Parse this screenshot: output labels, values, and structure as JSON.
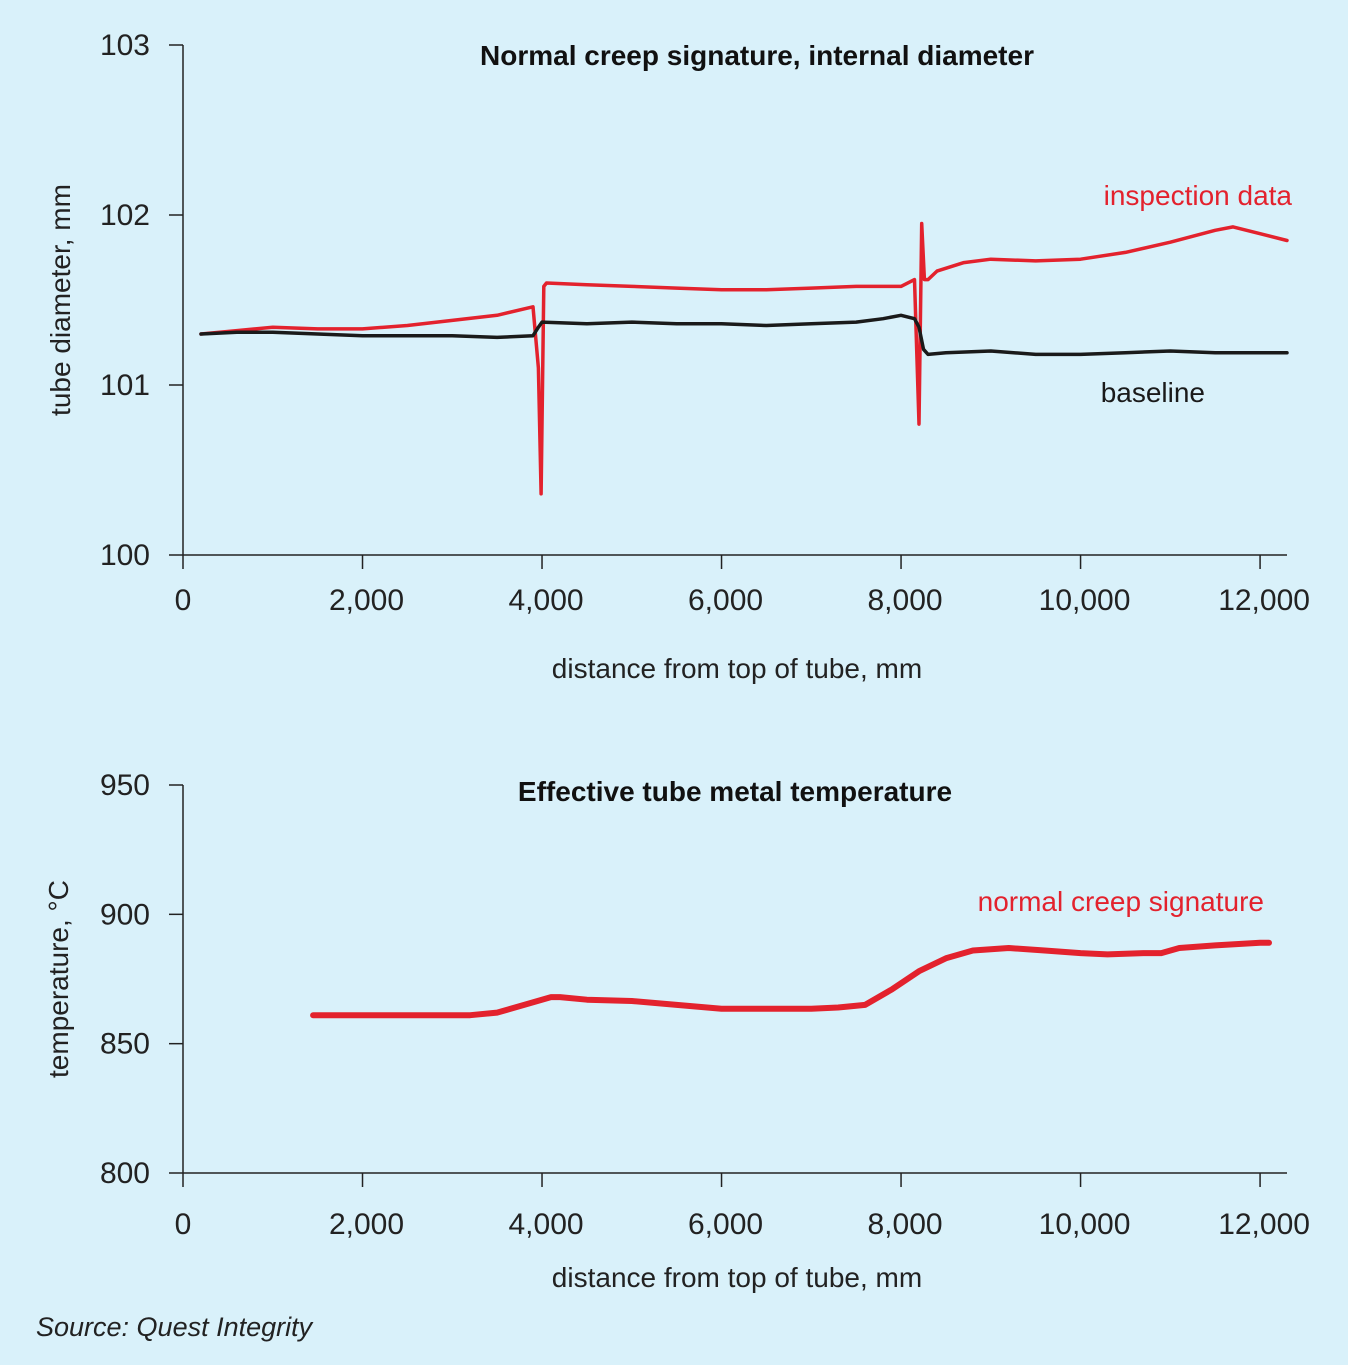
{
  "colors": {
    "background": "#d9f1fa",
    "inspection": "#e3222d",
    "baseline": "#1a1a1a",
    "axis": "#222222"
  },
  "source": "Source: Quest Integrity",
  "chart_data": [
    {
      "type": "line",
      "title": "Normal creep signature, internal diameter",
      "xlabel": "distance from top of tube, mm",
      "ylabel": "tube diameter, mm",
      "xlim": [
        0,
        12300
      ],
      "ylim": [
        100,
        103
      ],
      "xticks": [
        0,
        2000,
        4000,
        6000,
        8000,
        10000,
        12000
      ],
      "xtick_labels": [
        "0",
        "2,000",
        "4,000",
        "6,000",
        "8,000",
        "10,000",
        "12,000"
      ],
      "yticks": [
        100,
        101,
        102,
        103
      ],
      "ytick_labels": [
        "100",
        "101",
        "102",
        "103"
      ],
      "grid": false,
      "series": [
        {
          "name": "inspection data",
          "color": "#e3222d",
          "x": [
            200,
            600,
            1000,
            1500,
            2000,
            2500,
            3000,
            3500,
            3900,
            3960,
            3990,
            4020,
            4050,
            4500,
            5000,
            5500,
            6000,
            6500,
            7000,
            7500,
            8000,
            8150,
            8200,
            8230,
            8260,
            8300,
            8400,
            8700,
            9000,
            9500,
            10000,
            10500,
            11000,
            11500,
            11700,
            12000,
            12300
          ],
          "y": [
            101.3,
            101.32,
            101.34,
            101.33,
            101.33,
            101.35,
            101.38,
            101.41,
            101.46,
            101.1,
            100.36,
            101.58,
            101.6,
            101.59,
            101.58,
            101.57,
            101.56,
            101.56,
            101.57,
            101.58,
            101.58,
            101.62,
            100.77,
            101.95,
            101.62,
            101.62,
            101.67,
            101.72,
            101.74,
            101.73,
            101.74,
            101.78,
            101.84,
            101.91,
            101.93,
            101.89,
            101.85
          ]
        },
        {
          "name": "baseline",
          "color": "#1a1a1a",
          "x": [
            200,
            600,
            1000,
            1500,
            2000,
            2500,
            3000,
            3500,
            3900,
            3960,
            4000,
            4500,
            5000,
            5500,
            6000,
            6500,
            7000,
            7500,
            7800,
            8000,
            8150,
            8200,
            8250,
            8300,
            8500,
            9000,
            9500,
            10000,
            10500,
            11000,
            11500,
            12000,
            12300
          ],
          "y": [
            101.3,
            101.31,
            101.31,
            101.3,
            101.29,
            101.29,
            101.29,
            101.28,
            101.29,
            101.34,
            101.37,
            101.36,
            101.37,
            101.36,
            101.36,
            101.35,
            101.36,
            101.37,
            101.39,
            101.41,
            101.39,
            101.34,
            101.21,
            101.18,
            101.19,
            101.2,
            101.18,
            101.18,
            101.19,
            101.2,
            101.19,
            101.19,
            101.19
          ]
        }
      ]
    },
    {
      "type": "line",
      "title": "Effective tube metal temperature",
      "xlabel": "distance from top of tube, mm",
      "ylabel": "temperature, °C",
      "xlim": [
        0,
        12300
      ],
      "ylim": [
        800,
        950
      ],
      "xticks": [
        0,
        2000,
        4000,
        6000,
        8000,
        10000,
        12000
      ],
      "xtick_labels": [
        "0",
        "2,000",
        "4,000",
        "6,000",
        "8,000",
        "10,000",
        "12,000"
      ],
      "yticks": [
        800,
        850,
        900,
        950
      ],
      "ytick_labels": [
        "800",
        "850",
        "900",
        "950"
      ],
      "grid": false,
      "series": [
        {
          "name": "normal creep signature",
          "color": "#e3222d",
          "x": [
            1450,
            2000,
            2500,
            3000,
            3200,
            3500,
            3800,
            4100,
            4200,
            4500,
            5000,
            5500,
            6000,
            6500,
            7000,
            7300,
            7600,
            7900,
            8200,
            8500,
            8800,
            9200,
            9600,
            10000,
            10300,
            10700,
            10900,
            11100,
            11500,
            12000,
            12100
          ],
          "y": [
            861,
            861,
            861,
            861,
            861,
            862,
            865,
            868,
            868,
            867,
            866.5,
            865,
            863.5,
            863.5,
            863.5,
            864,
            865,
            871,
            878,
            883,
            886,
            887,
            886,
            885,
            884.5,
            885,
            885,
            887,
            888,
            889,
            889
          ]
        }
      ]
    }
  ]
}
